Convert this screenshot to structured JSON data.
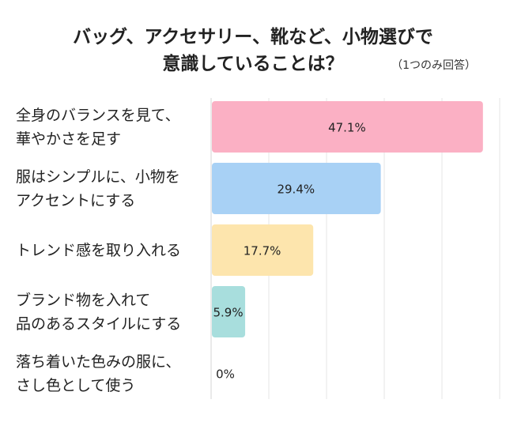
{
  "chart_data": {
    "type": "bar",
    "orientation": "horizontal",
    "title_line1": "バッグ、アクセサリー、靴など、小物選びで",
    "title_line2": "意識していることは？",
    "note": "（1つのみ回答）",
    "categories": [
      [
        "全身のバランスを見て、",
        "華やかさを足す"
      ],
      [
        "服はシンプルに、小物を",
        "アクセントにする"
      ],
      [
        "トレンド感を取り入れる"
      ],
      [
        "ブランド物を入れて",
        "品のあるスタイルにする"
      ],
      [
        "落ち着いた色みの服に、",
        "さし色として使う"
      ]
    ],
    "values": [
      47.1,
      29.4,
      17.7,
      5.9,
      0
    ],
    "value_labels": [
      "47.1%",
      "29.4%",
      "17.7%",
      "5.9%",
      "0%"
    ],
    "colors": [
      "#fbb0c4",
      "#a8d1f5",
      "#fde5ad",
      "#a8dedd",
      "#cccccc"
    ],
    "xlim": [
      0,
      50
    ],
    "grid": true
  }
}
